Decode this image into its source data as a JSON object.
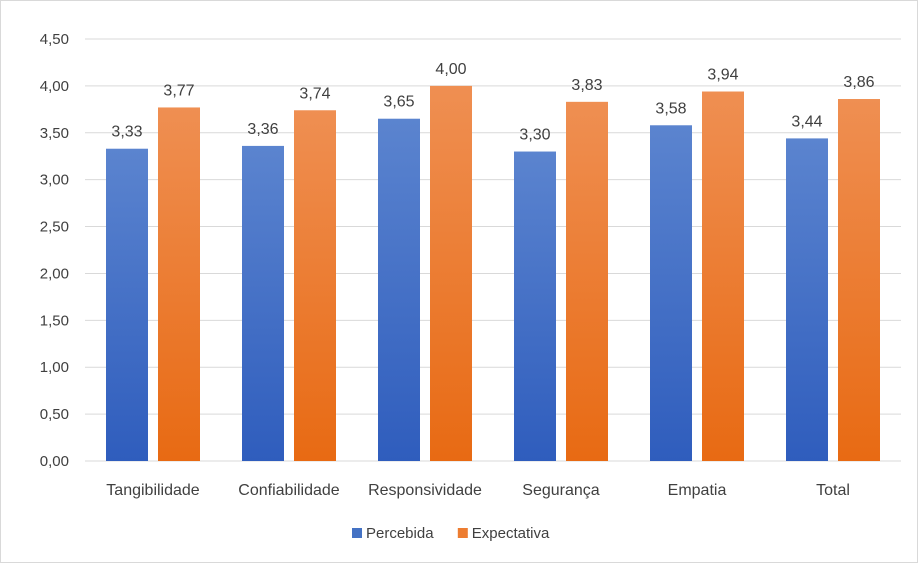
{
  "chart_data": {
    "type": "bar",
    "categories": [
      "Tangibilidade",
      "Confiabilidade",
      "Responsividade",
      "Segurança",
      "Empatia",
      "Total"
    ],
    "series": [
      {
        "name": "Percebida",
        "values": [
          3.33,
          3.36,
          3.65,
          3.3,
          3.58,
          3.44
        ],
        "color": "#4472c4"
      },
      {
        "name": "Expectativa",
        "values": [
          3.77,
          3.74,
          4.0,
          3.83,
          3.94,
          3.86
        ],
        "color": "#ed7d31"
      }
    ],
    "ylim": [
      0,
      4.5
    ],
    "yticks": [
      0,
      0.5,
      1.0,
      1.5,
      2.0,
      2.5,
      3.0,
      3.5,
      4.0,
      4.5
    ],
    "decimal_separator": ",",
    "grid": true,
    "legend_position": "bottom",
    "title": "",
    "xlabel": "",
    "ylabel": ""
  }
}
